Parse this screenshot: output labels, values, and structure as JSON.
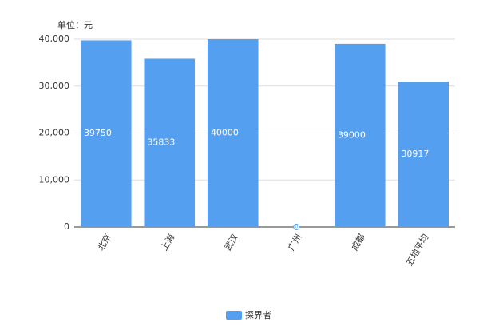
{
  "chart_data": {
    "type": "bar",
    "unit_label": "单位：元",
    "categories": [
      "北京",
      "上海",
      "武汉",
      "广州",
      "成都",
      "五地平均"
    ],
    "series": [
      {
        "name": "探界者",
        "color": "#559ff0",
        "values": [
          39750,
          35833,
          40000,
          0,
          39000,
          30917
        ]
      }
    ],
    "ylim": [
      0,
      40000
    ],
    "yticks": [
      0,
      {
        "value": 10000,
        "label": "10,000"
      },
      {
        "value": 20000,
        "label": "20,000"
      },
      {
        "value": 30000,
        "label": "30,000"
      },
      {
        "value": 40000,
        "label": "40,000"
      }
    ],
    "grid": true
  }
}
